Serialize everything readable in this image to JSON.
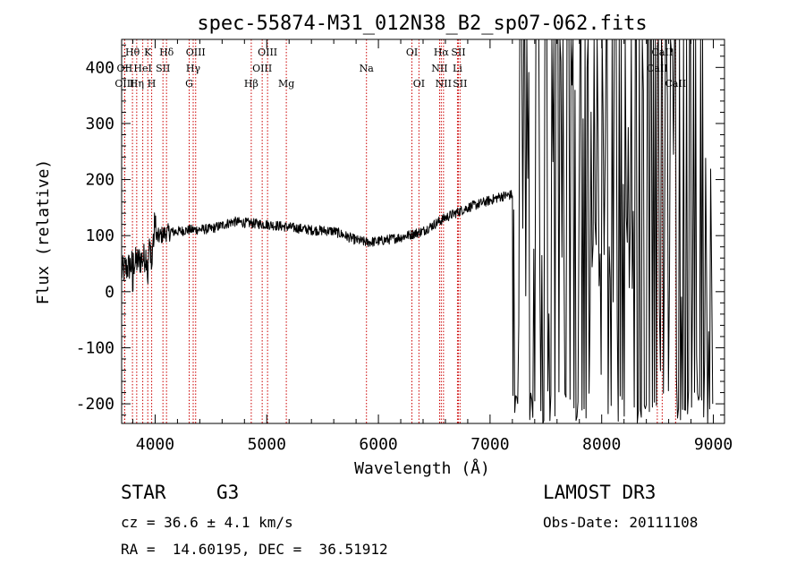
{
  "chart_data": {
    "type": "line",
    "title": "spec-55874-M31_012N38_B2_sp07-062.fits",
    "xlabel": "Wavelength (Å)",
    "ylabel": "Flux (relative)",
    "xlim": [
      3700,
      9100
    ],
    "ylim": [
      -235,
      450
    ],
    "x_ticks": [
      4000,
      5000,
      6000,
      7000,
      8000,
      9000
    ],
    "y_ticks": [
      -200,
      -100,
      0,
      100,
      200,
      300,
      400
    ],
    "grid": false,
    "series": [
      {
        "name": "spectrum",
        "continuum": {
          "x": [
            3700,
            3800,
            3900,
            3950,
            4000,
            4100,
            4300,
            4500,
            4700,
            4850,
            5000,
            5200,
            5400,
            5600,
            5700,
            5800,
            5900,
            6000,
            6200,
            6400,
            6600,
            6800,
            7000,
            7100,
            7200
          ],
          "y": [
            35,
            50,
            60,
            75,
            95,
            105,
            110,
            112,
            125,
            122,
            120,
            115,
            110,
            108,
            100,
            92,
            88,
            90,
            97,
            108,
            132,
            150,
            163,
            170,
            173
          ]
        },
        "noisy_region": [
          7200,
          9000
        ],
        "noisy_range": [
          -235,
          450
        ]
      }
    ],
    "line_markers": [
      {
        "label": "Hθ",
        "wavelength": 3797,
        "row": 1
      },
      {
        "label": "OII",
        "wavelength": 3727,
        "row": 2
      },
      {
        "label": "OIII",
        "wavelength": 3727,
        "row": 3
      },
      {
        "label": "K",
        "wavelength": 3934,
        "row": 1
      },
      {
        "label": "HeI",
        "wavelength": 3889,
        "row": 2
      },
      {
        "label": "Hη",
        "wavelength": 3835,
        "row": 3
      },
      {
        "label": "SII",
        "wavelength": 4070,
        "row": 2
      },
      {
        "label": "H",
        "wavelength": 3969,
        "row": 3
      },
      {
        "label": "Hδ",
        "wavelength": 4102,
        "row": 1
      },
      {
        "label": "OIII",
        "wavelength": 4363,
        "row": 1
      },
      {
        "label": "Hγ",
        "wavelength": 4341,
        "row": 2
      },
      {
        "label": "G",
        "wavelength": 4305,
        "row": 3
      },
      {
        "label": "OIII",
        "wavelength": 5007,
        "row": 1
      },
      {
        "label": "OIII",
        "wavelength": 4959,
        "row": 2
      },
      {
        "label": "Hβ",
        "wavelength": 4861,
        "row": 3
      },
      {
        "label": "Mg",
        "wavelength": 5175,
        "row": 3
      },
      {
        "label": "Na",
        "wavelength": 5893,
        "row": 2
      },
      {
        "label": "OI",
        "wavelength": 6300,
        "row": 1
      },
      {
        "label": "OI",
        "wavelength": 6363,
        "row": 3
      },
      {
        "label": "Hα",
        "wavelength": 6563,
        "row": 1
      },
      {
        "label": "SII",
        "wavelength": 6716,
        "row": 1
      },
      {
        "label": "NII",
        "wavelength": 6548,
        "row": 2
      },
      {
        "label": "Li",
        "wavelength": 6708,
        "row": 2
      },
      {
        "label": "NII",
        "wavelength": 6583,
        "row": 3
      },
      {
        "label": "SII",
        "wavelength": 6731,
        "row": 3
      },
      {
        "label": "CaII",
        "wavelength": 8542,
        "row": 1
      },
      {
        "label": "CaII",
        "wavelength": 8498,
        "row": 2
      },
      {
        "label": "CaII",
        "wavelength": 8662,
        "row": 3
      }
    ]
  },
  "info": {
    "class": "STAR",
    "subclass": "G3",
    "survey": "LAMOST DR3",
    "cz": "cz = 36.6 ± 4.1 km/s",
    "obs_date": "Obs-Date: 20111108",
    "coords": "RA =  14.60195, DEC =  36.51912"
  },
  "colors": {
    "spectrum": "#000000",
    "marker_line": "#cc0000",
    "axes": "#000000"
  }
}
